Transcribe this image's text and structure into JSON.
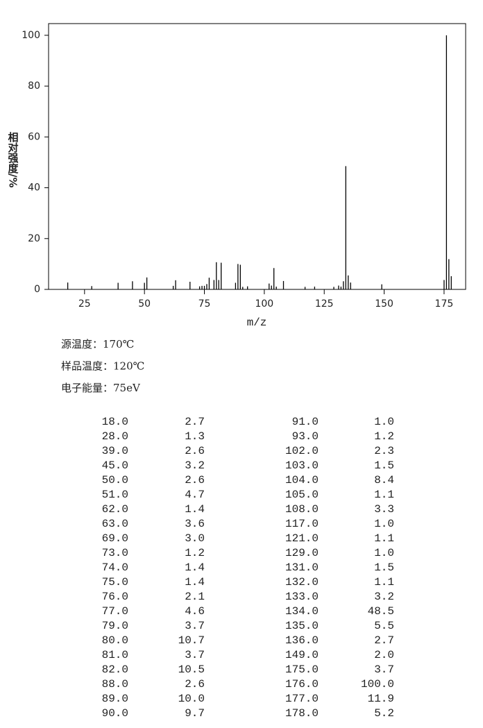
{
  "chart_data": {
    "type": "bar",
    "x_label": "m/z",
    "y_label": "相对强度/%",
    "x": [
      18,
      28,
      39,
      45,
      50,
      51,
      62,
      63,
      69,
      73,
      74,
      75,
      76,
      77,
      79,
      80,
      81,
      82,
      88,
      89,
      90,
      91,
      93,
      102,
      103,
      104,
      105,
      108,
      117,
      121,
      129,
      131,
      132,
      133,
      134,
      135,
      136,
      149,
      175,
      176,
      177,
      178
    ],
    "values": [
      2.7,
      1.3,
      2.6,
      3.2,
      2.6,
      4.7,
      1.4,
      3.6,
      3.0,
      1.2,
      1.4,
      1.4,
      2.1,
      4.6,
      3.7,
      10.7,
      3.7,
      10.5,
      2.6,
      10.0,
      9.7,
      1.0,
      1.2,
      2.3,
      1.5,
      8.4,
      1.1,
      3.3,
      1.0,
      1.1,
      1.0,
      1.5,
      1.1,
      3.2,
      48.5,
      5.5,
      2.7,
      2.0,
      3.7,
      100.0,
      11.9,
      5.2
    ],
    "color": "#000000",
    "xlim": [
      10,
      184
    ],
    "xticks": [
      25,
      50,
      75,
      100,
      125,
      150,
      175
    ],
    "ylim": [
      0,
      104.6
    ],
    "yticks": [
      0,
      20,
      40,
      60,
      80,
      100
    ]
  },
  "conditions": [
    "源温度：170℃",
    "样品温度：120℃",
    "电子能量：75eV"
  ],
  "table": {
    "rows": [
      [
        "18.0",
        "2.7",
        "91.0",
        "1.0"
      ],
      [
        "28.0",
        "1.3",
        "93.0",
        "1.2"
      ],
      [
        "39.0",
        "2.6",
        "102.0",
        "2.3"
      ],
      [
        "45.0",
        "3.2",
        "103.0",
        "1.5"
      ],
      [
        "50.0",
        "2.6",
        "104.0",
        "8.4"
      ],
      [
        "51.0",
        "4.7",
        "105.0",
        "1.1"
      ],
      [
        "62.0",
        "1.4",
        "108.0",
        "3.3"
      ],
      [
        "63.0",
        "3.6",
        "117.0",
        "1.0"
      ],
      [
        "69.0",
        "3.0",
        "121.0",
        "1.1"
      ],
      [
        "73.0",
        "1.2",
        "129.0",
        "1.0"
      ],
      [
        "74.0",
        "1.4",
        "131.0",
        "1.5"
      ],
      [
        "75.0",
        "1.4",
        "132.0",
        "1.1"
      ],
      [
        "76.0",
        "2.1",
        "133.0",
        "3.2"
      ],
      [
        "77.0",
        "4.6",
        "134.0",
        "48.5"
      ],
      [
        "79.0",
        "3.7",
        "135.0",
        "5.5"
      ],
      [
        "80.0",
        "10.7",
        "136.0",
        "2.7"
      ],
      [
        "81.0",
        "3.7",
        "149.0",
        "2.0"
      ],
      [
        "82.0",
        "10.5",
        "175.0",
        "3.7"
      ],
      [
        "88.0",
        "2.6",
        "176.0",
        "100.0"
      ],
      [
        "89.0",
        "10.0",
        "177.0",
        "11.9"
      ],
      [
        "90.0",
        "9.7",
        "178.0",
        "5.2"
      ]
    ]
  }
}
